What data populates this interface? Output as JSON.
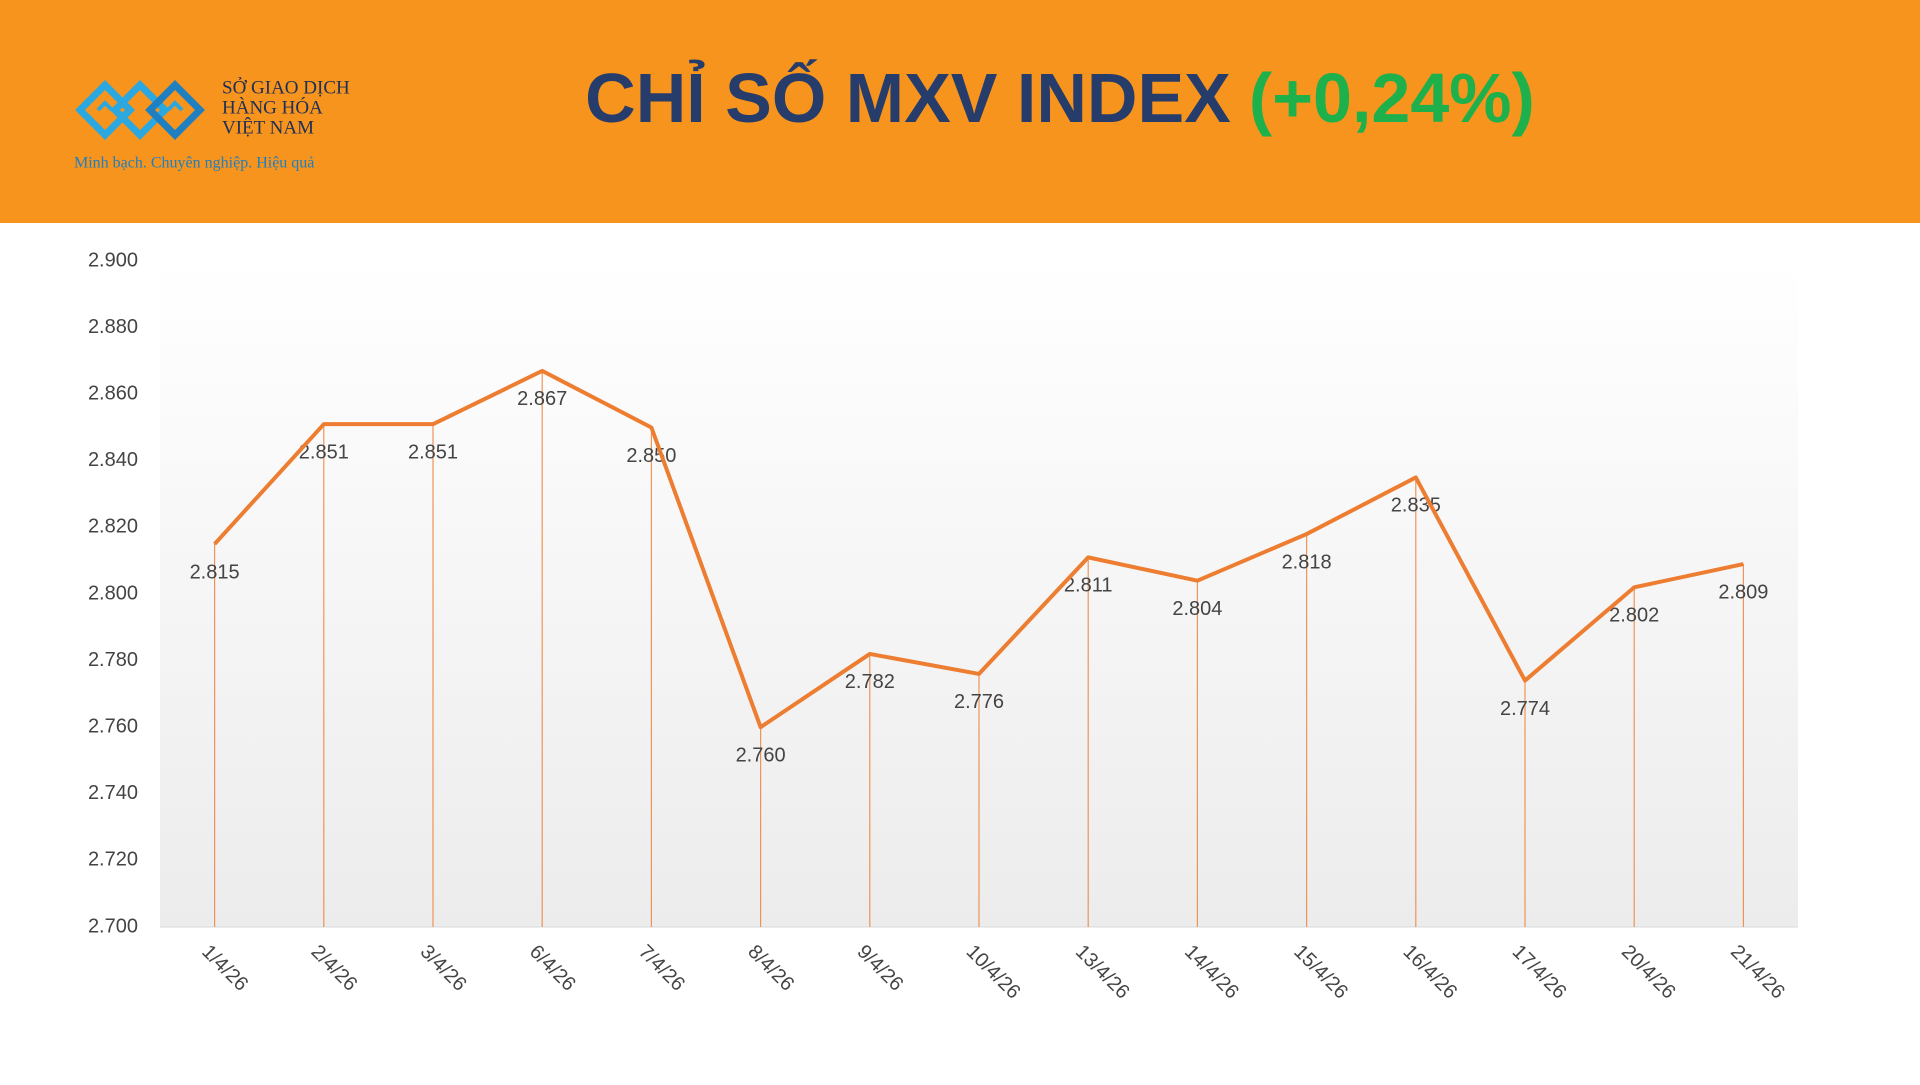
{
  "header": {
    "brand": [
      "SỞ GIAO DỊCH",
      "HÀNG HÓA",
      "VIỆT NAM"
    ],
    "slogan": "Minh bạch. Chuyên nghiệp. Hiệu quả"
  },
  "chart_data": {
    "type": "line",
    "title": "CHỈ SỐ MXV INDEX",
    "subtitle": "(+0,24%)",
    "categories": [
      "1/4/26",
      "2/4/26",
      "3/4/26",
      "6/4/26",
      "7/4/26",
      "8/4/26",
      "9/4/26",
      "10/4/26",
      "13/4/26",
      "14/4/26",
      "15/4/26",
      "16/4/26",
      "17/4/26",
      "20/4/26",
      "21/4/26"
    ],
    "values": [
      2815,
      2851,
      2851,
      2867,
      2850,
      2760,
      2782,
      2776,
      2811,
      2804,
      2818,
      2835,
      2774,
      2802,
      2809
    ],
    "value_labels": [
      "2.815",
      "2.851",
      "2.851",
      "2.867",
      "2.850",
      "2.760",
      "2.782",
      "2.776",
      "2.811",
      "2.804",
      "2.818",
      "2.835",
      "2.774",
      "2.802",
      "2.809"
    ],
    "color": "#ED7D31",
    "ylim": [
      2700,
      2900
    ],
    "yticks": [
      {
        "value": 2700,
        "label": "2.700"
      },
      {
        "value": 2720,
        "label": "2.720"
      },
      {
        "value": 2740,
        "label": "2.740"
      },
      {
        "value": 2760,
        "label": "2.760"
      },
      {
        "value": 2780,
        "label": "2.780"
      },
      {
        "value": 2800,
        "label": "2.800"
      },
      {
        "value": 2820,
        "label": "2.820"
      },
      {
        "value": 2840,
        "label": "2.840"
      },
      {
        "value": 2860,
        "label": "2.860"
      },
      {
        "value": 2880,
        "label": "2.880"
      },
      {
        "value": 2900,
        "label": "2.900"
      }
    ]
  }
}
